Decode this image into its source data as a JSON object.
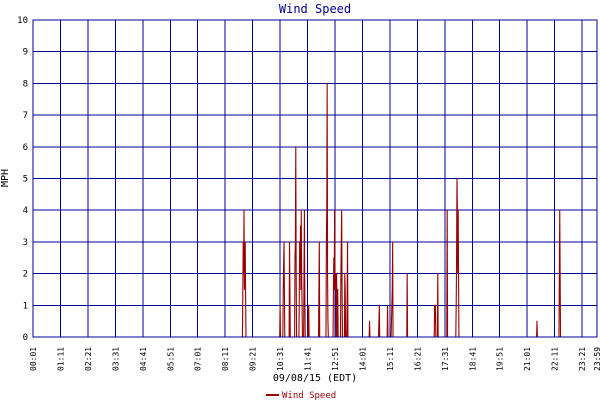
{
  "chart_data": {
    "type": "line",
    "title": "Wind Speed",
    "xlabel": "09/08/15 (EDT)",
    "ylabel": "MPH",
    "x_unit": "time of day",
    "ylim": [
      0,
      10
    ],
    "xlim": [
      "00:01",
      "23:59"
    ],
    "grid": true,
    "legend_position": "bottom-center",
    "y_ticks": [
      "0",
      "1",
      "2",
      "3",
      "4",
      "5",
      "6",
      "7",
      "8",
      "9",
      "10"
    ],
    "x_ticks": [
      "00:01",
      "01:11",
      "02:21",
      "03:31",
      "04:41",
      "05:51",
      "07:01",
      "08:11",
      "09:21",
      "10:31",
      "11:41",
      "12:51",
      "14:01",
      "15:11",
      "16:21",
      "17:31",
      "18:41",
      "19:51",
      "21:01",
      "22:11",
      "23:21",
      "23:59"
    ],
    "series": [
      {
        "name": "Wind Speed",
        "color": "#990000",
        "points": [
          [
            "00:01",
            0
          ],
          [
            "08:55",
            0
          ],
          [
            "08:56",
            1.5
          ],
          [
            "08:57",
            3
          ],
          [
            "08:58",
            2
          ],
          [
            "08:59",
            4
          ],
          [
            "09:00",
            1.5
          ],
          [
            "09:01",
            2.5
          ],
          [
            "09:02",
            3
          ],
          [
            "09:03",
            1.5
          ],
          [
            "09:04",
            0
          ],
          [
            "10:30",
            0
          ],
          [
            "10:31",
            1
          ],
          [
            "10:32",
            0
          ],
          [
            "10:38",
            0
          ],
          [
            "10:39",
            1.5
          ],
          [
            "10:41",
            3
          ],
          [
            "10:43",
            0
          ],
          [
            "10:54",
            0
          ],
          [
            "10:55",
            3
          ],
          [
            "10:56",
            1.5
          ],
          [
            "10:57",
            0
          ],
          [
            "11:08",
            0
          ],
          [
            "11:09",
            2.5
          ],
          [
            "11:10",
            3
          ],
          [
            "11:11",
            6
          ],
          [
            "11:12",
            2
          ],
          [
            "11:13",
            0
          ],
          [
            "11:19",
            0
          ],
          [
            "11:20",
            1.5
          ],
          [
            "11:21",
            3
          ],
          [
            "11:22",
            2
          ],
          [
            "11:23",
            3.5
          ],
          [
            "11:24",
            1.5
          ],
          [
            "11:25",
            4
          ],
          [
            "11:26",
            2
          ],
          [
            "11:27",
            1
          ],
          [
            "11:28",
            0
          ],
          [
            "11:31",
            0
          ],
          [
            "11:32",
            2
          ],
          [
            "11:33",
            4
          ],
          [
            "11:34",
            1.5
          ],
          [
            "11:35",
            0
          ],
          [
            "11:42",
            0
          ],
          [
            "11:43",
            0.5
          ],
          [
            "11:44",
            1
          ],
          [
            "11:45",
            0
          ],
          [
            "12:09",
            0
          ],
          [
            "12:10",
            1.5
          ],
          [
            "12:11",
            3
          ],
          [
            "12:12",
            0
          ],
          [
            "12:28",
            0
          ],
          [
            "12:29",
            3
          ],
          [
            "12:30",
            4
          ],
          [
            "12:31",
            8
          ],
          [
            "12:32",
            2
          ],
          [
            "12:33",
            0.5
          ],
          [
            "12:34",
            0
          ],
          [
            "12:46",
            0
          ],
          [
            "12:47",
            1.5
          ],
          [
            "12:48",
            2.5
          ],
          [
            "12:49",
            1.5
          ],
          [
            "12:50",
            4
          ],
          [
            "12:51",
            2
          ],
          [
            "12:52",
            1.5
          ],
          [
            "12:53",
            2
          ],
          [
            "12:54",
            0
          ],
          [
            "12:55",
            2
          ],
          [
            "12:56",
            1
          ],
          [
            "12:57",
            0
          ],
          [
            "12:58",
            1.5
          ],
          [
            "12:59",
            0
          ],
          [
            "13:05",
            0
          ],
          [
            "13:06",
            2
          ],
          [
            "13:07",
            3
          ],
          [
            "13:08",
            4
          ],
          [
            "13:09",
            1.5
          ],
          [
            "13:10",
            0
          ],
          [
            "13:15",
            0
          ],
          [
            "13:16",
            2
          ],
          [
            "13:17",
            1.5
          ],
          [
            "13:18",
            0
          ],
          [
            "13:21",
            0
          ],
          [
            "13:22",
            1.5
          ],
          [
            "13:23",
            3
          ],
          [
            "13:24",
            0
          ],
          [
            "14:18",
            0
          ],
          [
            "14:19",
            0.5
          ],
          [
            "14:20",
            0
          ],
          [
            "14:42",
            0
          ],
          [
            "14:43",
            0.5
          ],
          [
            "14:44",
            1
          ],
          [
            "14:45",
            0
          ],
          [
            "15:04",
            0
          ],
          [
            "15:05",
            1
          ],
          [
            "15:06",
            0
          ],
          [
            "15:14",
            0
          ],
          [
            "15:15",
            0.5
          ],
          [
            "15:16",
            1
          ],
          [
            "15:17",
            1.5
          ],
          [
            "15:18",
            3
          ],
          [
            "15:19",
            0
          ],
          [
            "15:54",
            0
          ],
          [
            "15:55",
            2
          ],
          [
            "15:56",
            0
          ],
          [
            "17:04",
            0
          ],
          [
            "17:05",
            1
          ],
          [
            "17:06",
            0.5
          ],
          [
            "17:07",
            1
          ],
          [
            "17:08",
            0
          ],
          [
            "17:12",
            0
          ],
          [
            "17:13",
            2
          ],
          [
            "17:14",
            0
          ],
          [
            "17:36",
            0
          ],
          [
            "17:37",
            4
          ],
          [
            "17:38",
            0
          ],
          [
            "17:59",
            0
          ],
          [
            "18:00",
            1
          ],
          [
            "18:01",
            2.5
          ],
          [
            "18:02",
            5
          ],
          [
            "18:03",
            4
          ],
          [
            "18:04",
            2
          ],
          [
            "18:05",
            4
          ],
          [
            "18:06",
            2
          ],
          [
            "18:07",
            0
          ],
          [
            "21:25",
            0
          ],
          [
            "21:26",
            0.5
          ],
          [
            "21:27",
            0
          ],
          [
            "22:22",
            0
          ],
          [
            "22:23",
            2
          ],
          [
            "22:24",
            4
          ],
          [
            "22:25",
            2
          ],
          [
            "22:26",
            0
          ],
          [
            "23:59",
            0
          ]
        ]
      }
    ]
  }
}
